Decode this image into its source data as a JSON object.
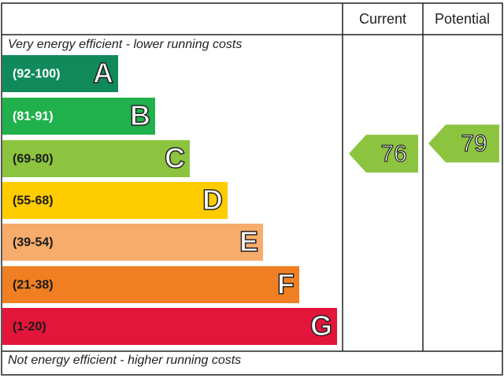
{
  "header": {
    "current": "Current",
    "potential": "Potential"
  },
  "top_note": "Very energy efficient - lower running costs",
  "bottom_note": "Not energy efficient - higher running costs",
  "bands": [
    {
      "range": "(92-100)",
      "letter": "A",
      "color": "#108a5b",
      "text_color": "#ffffff"
    },
    {
      "range": "(81-91)",
      "letter": "B",
      "color": "#20b14c",
      "text_color": "#ffffff"
    },
    {
      "range": "(69-80)",
      "letter": "C",
      "color": "#8cc43f",
      "text_color": "#1a1a1a"
    },
    {
      "range": "(55-68)",
      "letter": "D",
      "color": "#ffcc00",
      "text_color": "#1a1a1a"
    },
    {
      "range": "(39-54)",
      "letter": "E",
      "color": "#f7ac6b",
      "text_color": "#1a1a1a"
    },
    {
      "range": "(21-38)",
      "letter": "F",
      "color": "#ef7f22",
      "text_color": "#1a1a1a"
    },
    {
      "range": "(1-20)",
      "letter": "G",
      "color": "#e3153a",
      "text_color": "#1a1a1a"
    }
  ],
  "ratings": {
    "current": 76,
    "potential": 79
  }
}
